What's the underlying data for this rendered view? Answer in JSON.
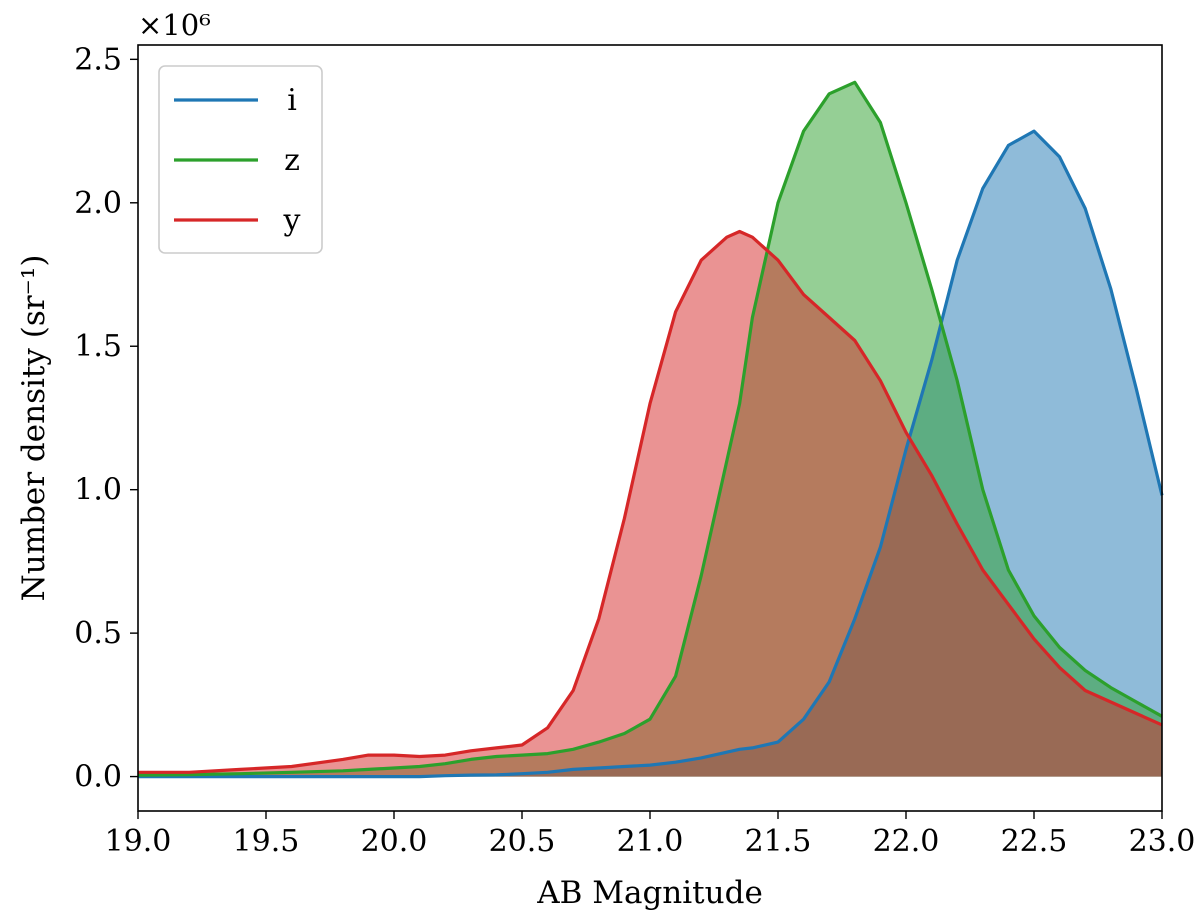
{
  "chart_data": {
    "type": "area",
    "title": "",
    "xlabel": "AB Magnitude",
    "ylabel": "Number density (sr⁻¹)",
    "y_multiplier_label": "×10⁶",
    "xlim": [
      19.0,
      23.0
    ],
    "ylim": [
      -0.12,
      2.55
    ],
    "xticks": [
      "19.0",
      "19.5",
      "20.0",
      "20.5",
      "21.0",
      "21.5",
      "22.0",
      "22.5",
      "23.0"
    ],
    "yticks": [
      "0.0",
      "0.5",
      "1.0",
      "1.5",
      "2.0",
      "2.5"
    ],
    "grid": false,
    "legend_position": "top-left",
    "x": [
      19.0,
      19.2,
      19.4,
      19.6,
      19.8,
      19.9,
      20.0,
      20.1,
      20.2,
      20.3,
      20.4,
      20.5,
      20.6,
      20.7,
      20.8,
      20.9,
      21.0,
      21.1,
      21.2,
      21.3,
      21.35,
      21.4,
      21.5,
      21.6,
      21.7,
      21.8,
      21.9,
      22.0,
      22.1,
      22.2,
      22.3,
      22.4,
      22.5,
      22.6,
      22.7,
      22.8,
      22.9,
      23.0
    ],
    "series": [
      {
        "name": "i",
        "color": "#1f77b4",
        "fill": "#8fb9da",
        "values": [
          0.0,
          0.0,
          0.0,
          0.0,
          0.0,
          0.0,
          0.0,
          0.0,
          0.003,
          0.005,
          0.006,
          0.01,
          0.015,
          0.025,
          0.03,
          0.035,
          0.04,
          0.05,
          0.065,
          0.085,
          0.095,
          0.1,
          0.12,
          0.2,
          0.33,
          0.55,
          0.8,
          1.14,
          1.45,
          1.8,
          2.05,
          2.2,
          2.25,
          2.16,
          1.98,
          1.7,
          1.35,
          0.98
        ]
      },
      {
        "name": "z",
        "color": "#2ca02c",
        "fill": "#95d095",
        "values": [
          0.005,
          0.007,
          0.01,
          0.015,
          0.02,
          0.025,
          0.03,
          0.035,
          0.045,
          0.06,
          0.07,
          0.075,
          0.08,
          0.095,
          0.12,
          0.15,
          0.2,
          0.35,
          0.7,
          1.1,
          1.3,
          1.6,
          2.0,
          2.25,
          2.38,
          2.42,
          2.28,
          2.0,
          1.7,
          1.38,
          1.0,
          0.72,
          0.56,
          0.45,
          0.37,
          0.31,
          0.26,
          0.21
        ]
      },
      {
        "name": "y",
        "color": "#d62728",
        "fill": "#ea9596",
        "values": [
          0.015,
          0.015,
          0.025,
          0.035,
          0.06,
          0.075,
          0.075,
          0.07,
          0.075,
          0.09,
          0.1,
          0.11,
          0.17,
          0.3,
          0.55,
          0.9,
          1.3,
          1.62,
          1.8,
          1.88,
          1.9,
          1.88,
          1.8,
          1.68,
          1.6,
          1.52,
          1.38,
          1.2,
          1.05,
          0.88,
          0.72,
          0.6,
          0.48,
          0.38,
          0.3,
          0.26,
          0.22,
          0.18
        ]
      }
    ]
  }
}
